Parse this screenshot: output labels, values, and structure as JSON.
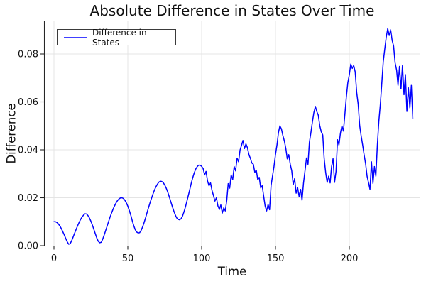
{
  "title": "Absolute Difference in States Over Time",
  "legend": {
    "label": "Difference in States"
  },
  "colors": {
    "line": "#0000ff",
    "grid": "#e4e4e4",
    "axis": "#262626",
    "text": "#111111",
    "legend_border": "#3a3a3a",
    "background": "#ffffff"
  },
  "chart_data": {
    "type": "line",
    "title": "Absolute Difference in States Over Time",
    "xlabel": "Time",
    "ylabel": "Difference",
    "xlim": [
      -6.5,
      248
    ],
    "ylim": [
      0,
      0.0936
    ],
    "xticks": [
      0,
      50,
      100,
      150,
      200
    ],
    "yticks": [
      0,
      0.02,
      0.04,
      0.06,
      0.08
    ],
    "ytick_labels": [
      "0.00",
      "0.02",
      "0.04",
      "0.06",
      "0.08"
    ],
    "grid": true,
    "legend_position": "top-left",
    "series": [
      {
        "name": "Difference in States",
        "color": "#0000ff",
        "x_start": 0,
        "x_step": 1,
        "values": [
          0.01,
          0.01,
          0.0097,
          0.0091,
          0.0082,
          0.0071,
          0.0058,
          0.0044,
          0.003,
          0.0016,
          0.0006,
          0.0009,
          0.0021,
          0.0036,
          0.0052,
          0.0068,
          0.0083,
          0.0097,
          0.0109,
          0.0119,
          0.0127,
          0.0133,
          0.0132,
          0.0126,
          0.0116,
          0.0102,
          0.0086,
          0.0068,
          0.005,
          0.0032,
          0.0018,
          0.0012,
          0.0014,
          0.0027,
          0.0044,
          0.0063,
          0.0082,
          0.0101,
          0.0119,
          0.0136,
          0.0152,
          0.0166,
          0.0178,
          0.0188,
          0.0195,
          0.0199,
          0.02,
          0.0197,
          0.019,
          0.0179,
          0.0165,
          0.0147,
          0.0127,
          0.0105,
          0.0084,
          0.0067,
          0.0057,
          0.0053,
          0.0054,
          0.0063,
          0.0078,
          0.0096,
          0.0116,
          0.0137,
          0.0158,
          0.0178,
          0.0197,
          0.0215,
          0.0231,
          0.0245,
          0.0256,
          0.0265,
          0.0269,
          0.0268,
          0.0263,
          0.0253,
          0.024,
          0.0224,
          0.0206,
          0.0186,
          0.0166,
          0.0147,
          0.013,
          0.0117,
          0.011,
          0.0108,
          0.0112,
          0.0123,
          0.014,
          0.0161,
          0.0185,
          0.021,
          0.0236,
          0.0261,
          0.0284,
          0.0304,
          0.032,
          0.033,
          0.0336,
          0.0336,
          0.0331,
          0.0322,
          0.0295,
          0.031,
          0.027,
          0.025,
          0.0262,
          0.023,
          0.021,
          0.0186,
          0.02,
          0.0166,
          0.0151,
          0.017,
          0.0136,
          0.0158,
          0.0145,
          0.019,
          0.0259,
          0.024,
          0.0295,
          0.0275,
          0.033,
          0.0312,
          0.0365,
          0.035,
          0.0399,
          0.0419,
          0.0439,
          0.0405,
          0.0425,
          0.0409,
          0.038,
          0.0365,
          0.0345,
          0.034,
          0.0306,
          0.0315,
          0.0276,
          0.0285,
          0.0241,
          0.025,
          0.0206,
          0.0166,
          0.0145,
          0.0172,
          0.015,
          0.0251,
          0.029,
          0.033,
          0.038,
          0.042,
          0.0472,
          0.05,
          0.0488,
          0.046,
          0.0437,
          0.0405,
          0.0362,
          0.038,
          0.034,
          0.0313,
          0.0254,
          0.028,
          0.0219,
          0.0242,
          0.0205,
          0.0235,
          0.019,
          0.0262,
          0.0313,
          0.0366,
          0.034,
          0.0432,
          0.0472,
          0.0516,
          0.0556,
          0.0581,
          0.056,
          0.0545,
          0.0501,
          0.0475,
          0.0462,
          0.0363,
          0.0305,
          0.0264,
          0.029,
          0.0262,
          0.033,
          0.0363,
          0.0264,
          0.031,
          0.0442,
          0.042,
          0.047,
          0.05,
          0.0478,
          0.055,
          0.062,
          0.068,
          0.0713,
          0.0758,
          0.074,
          0.0752,
          0.0725,
          0.0639,
          0.059,
          0.0501,
          0.046,
          0.0422,
          0.038,
          0.0343,
          0.029,
          0.0264,
          0.0235,
          0.035,
          0.026,
          0.033,
          0.029,
          0.042,
          0.052,
          0.059,
          0.068,
          0.0768,
          0.082,
          0.087,
          0.0906,
          0.0877,
          0.0901,
          0.0857,
          0.0833,
          0.0763,
          0.0733,
          0.0669,
          0.0748,
          0.0654,
          0.0753,
          0.063,
          0.0714,
          0.056,
          0.0659,
          0.0575,
          0.0669,
          0.0531
        ]
      }
    ]
  }
}
